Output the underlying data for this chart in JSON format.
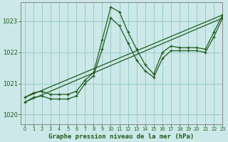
{
  "xlabel": "Graphe pression niveau de la mer (hPa)",
  "xlim": [
    -0.5,
    23
  ],
  "ylim": [
    1019.7,
    1023.6
  ],
  "yticks": [
    1020,
    1021,
    1022,
    1023
  ],
  "xticks": [
    0,
    1,
    2,
    3,
    4,
    5,
    6,
    7,
    8,
    9,
    10,
    11,
    12,
    13,
    14,
    15,
    16,
    17,
    18,
    19,
    20,
    21,
    22,
    23
  ],
  "bg_color": "#cce8e8",
  "grid_color": "#99cccc",
  "line_color": "#1e5c1e",
  "series": [
    {
      "x": [
        0,
        1,
        2,
        3,
        4,
        5,
        6,
        7,
        8,
        9,
        10,
        11,
        12,
        13,
        14,
        15,
        16,
        17,
        18,
        19,
        20,
        21,
        22,
        23
      ],
      "y": [
        1020.55,
        1020.7,
        1020.75,
        1020.65,
        1020.65,
        1020.65,
        1020.75,
        1021.1,
        1021.35,
        1022.4,
        1023.45,
        1023.3,
        1022.65,
        1022.1,
        1021.6,
        1021.3,
        1022.0,
        1022.2,
        1022.15,
        1022.15,
        1022.15,
        1022.1,
        1022.65,
        1023.2
      ],
      "markers": true
    },
    {
      "x": [
        0,
        1,
        2,
        3,
        4,
        5,
        6,
        7,
        8,
        9,
        10,
        11,
        12,
        13,
        14,
        15,
        16,
        17,
        18,
        19,
        20,
        21,
        22,
        23
      ],
      "y": [
        1020.4,
        1020.55,
        1020.6,
        1020.5,
        1020.5,
        1020.5,
        1020.6,
        1021.0,
        1021.25,
        1022.1,
        1023.1,
        1022.85,
        1022.3,
        1021.75,
        1021.4,
        1021.2,
        1021.8,
        1022.05,
        1022.05,
        1022.05,
        1022.05,
        1022.0,
        1022.5,
        1023.1
      ],
      "markers": true
    },
    {
      "x": [
        0,
        23
      ],
      "y": [
        1020.55,
        1023.2
      ],
      "markers": false
    },
    {
      "x": [
        0,
        23
      ],
      "y": [
        1020.4,
        1023.1
      ],
      "markers": false
    }
  ]
}
